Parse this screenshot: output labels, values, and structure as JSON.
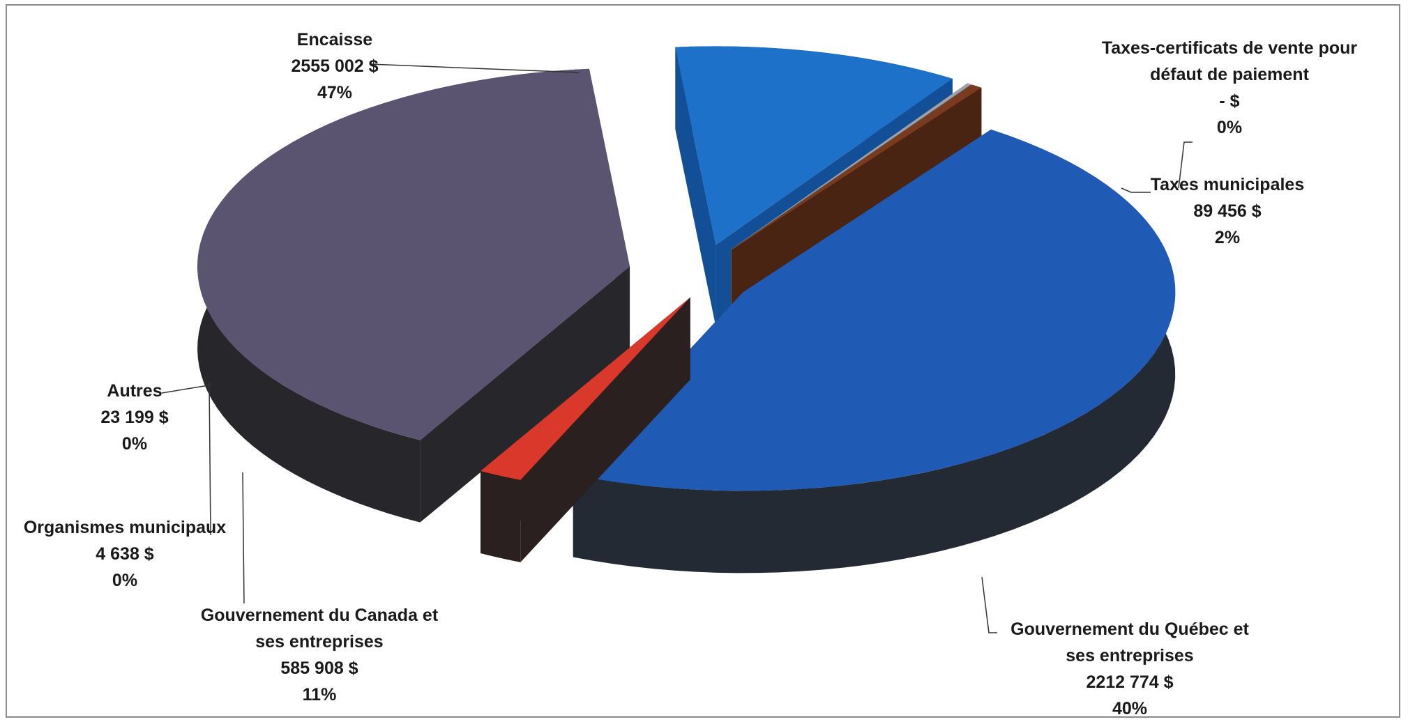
{
  "chart_data": {
    "type": "pie",
    "style": "3d-exploded",
    "title": "",
    "slices": [
      {
        "name": "Encaisse",
        "value": 2555002,
        "value_label": "2555 002  $",
        "percent_label": "47%",
        "color": "#1f5bb5"
      },
      {
        "name": "Taxes-certificats de vente pour défaut de paiement",
        "name_lines": [
          "Taxes-certificats de vente pour",
          "défaut de paiement"
        ],
        "value": 0,
        "value_label": "-    $",
        "percent_label": "0%",
        "color": "#2a2a2a"
      },
      {
        "name": "Taxes municipales",
        "value": 89456,
        "value_label": "89 456  $",
        "percent_label": "2%",
        "color": "#d9382a"
      },
      {
        "name": "Gouvernement du Québec et ses entreprises",
        "name_lines": [
          "Gouvernement du Québec et",
          "ses entreprises"
        ],
        "value": 2212774,
        "value_label": "2212 774  $",
        "percent_label": "40%",
        "color": "#5b5470"
      },
      {
        "name": "Gouvernement du Canada et ses entreprises",
        "name_lines": [
          "Gouvernement du Canada et",
          "ses entreprises"
        ],
        "value": 585908,
        "value_label": "585 908  $",
        "percent_label": "11%",
        "color": "#1d71c8"
      },
      {
        "name": "Organismes municipaux",
        "value": 4638,
        "value_label": "4 638  $",
        "percent_label": "0%",
        "color": "#a0a0a8"
      },
      {
        "name": "Autres",
        "value": 23199,
        "value_label": "23 199  $",
        "percent_label": "0%",
        "color": "#7a3a1e"
      }
    ]
  }
}
